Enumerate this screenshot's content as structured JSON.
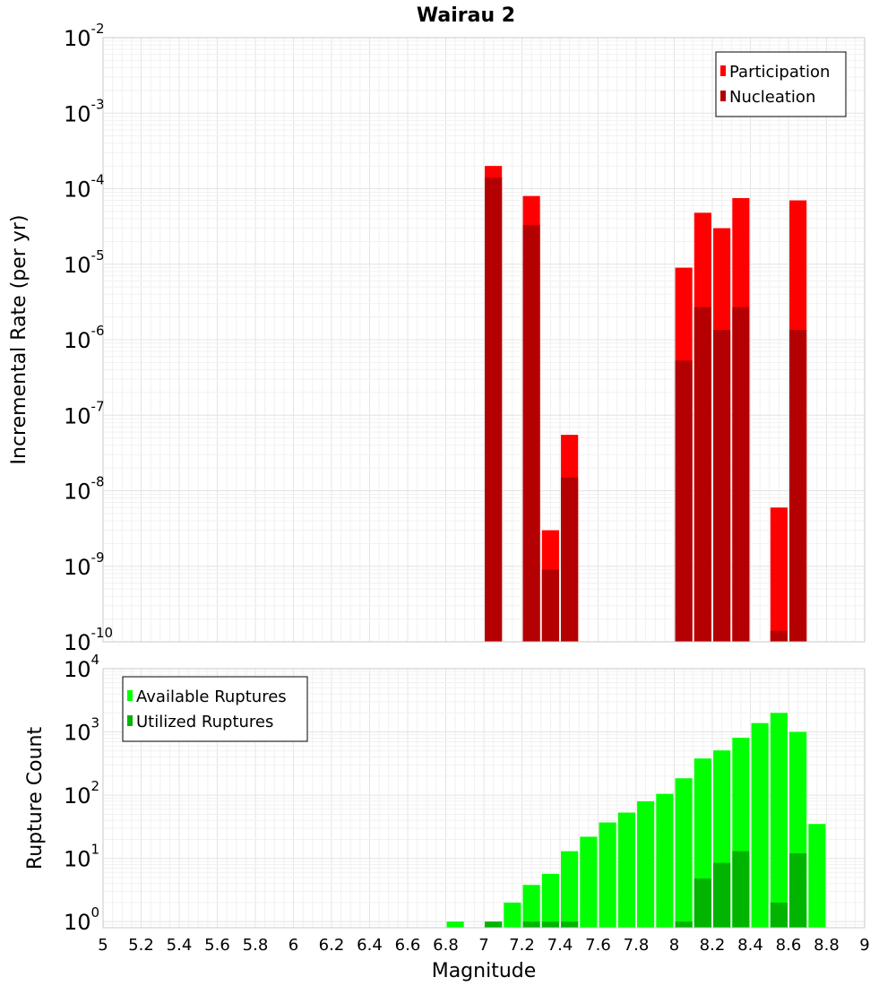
{
  "chart_data": [
    {
      "type": "bar",
      "title": "Wairau 2",
      "ylabel": "Incremental Rate (per yr)",
      "yscale": "log",
      "ylim": [
        1e-10,
        0.01
      ],
      "xlim": [
        5,
        9
      ],
      "y_tick_exponents": [
        "-10",
        "-9",
        "-8",
        "-7",
        "-6",
        "-5",
        "-4",
        "-3",
        "-2"
      ],
      "y_tick_base": "10",
      "legend_position": "top-right",
      "series": [
        {
          "name": "Participation",
          "color": "#ff0000",
          "points": [
            {
              "x": 7.05,
              "y": 0.0002
            },
            {
              "x": 7.25,
              "y": 8e-05
            },
            {
              "x": 7.35,
              "y": 3e-09
            },
            {
              "x": 7.45,
              "y": 5.5e-08
            },
            {
              "x": 8.05,
              "y": 9e-06
            },
            {
              "x": 8.15,
              "y": 4.8e-05
            },
            {
              "x": 8.25,
              "y": 3e-05
            },
            {
              "x": 8.35,
              "y": 7.5e-05
            },
            {
              "x": 8.55,
              "y": 6e-09
            },
            {
              "x": 8.65,
              "y": 7e-05
            }
          ]
        },
        {
          "name": "Nucleation",
          "color": "#b40000",
          "points": [
            {
              "x": 7.05,
              "y": 0.00014
            },
            {
              "x": 7.25,
              "y": 3.3e-05
            },
            {
              "x": 7.35,
              "y": 9e-10
            },
            {
              "x": 7.45,
              "y": 1.5e-08
            },
            {
              "x": 8.05,
              "y": 5.3e-07
            },
            {
              "x": 8.15,
              "y": 2.7e-06
            },
            {
              "x": 8.25,
              "y": 1.35e-06
            },
            {
              "x": 8.35,
              "y": 2.7e-06
            },
            {
              "x": 8.55,
              "y": 1.4e-10
            },
            {
              "x": 8.65,
              "y": 1.35e-06
            }
          ]
        }
      ]
    },
    {
      "type": "bar",
      "xlabel": "Magnitude",
      "ylabel": "Rupture Count",
      "yscale": "log",
      "ylim": [
        0.8,
        10000
      ],
      "xlim": [
        5,
        9
      ],
      "y_tick_exponents": [
        "0",
        "1",
        "2",
        "3",
        "4"
      ],
      "y_tick_base": "10",
      "x_ticks": [
        "5",
        "5.2",
        "5.4",
        "5.6",
        "5.8",
        "6",
        "6.2",
        "6.4",
        "6.6",
        "6.8",
        "7",
        "7.2",
        "7.4",
        "7.6",
        "7.8",
        "8",
        "8.2",
        "8.4",
        "8.6",
        "8.8",
        "9"
      ],
      "legend_position": "top-left",
      "series": [
        {
          "name": "Available Ruptures",
          "color": "#00ff00",
          "points": [
            {
              "x": 6.85,
              "y": 1
            },
            {
              "x": 7.05,
              "y": 1
            },
            {
              "x": 7.15,
              "y": 2
            },
            {
              "x": 7.25,
              "y": 3.8
            },
            {
              "x": 7.35,
              "y": 5.7
            },
            {
              "x": 7.45,
              "y": 13
            },
            {
              "x": 7.55,
              "y": 22
            },
            {
              "x": 7.65,
              "y": 37
            },
            {
              "x": 7.75,
              "y": 53
            },
            {
              "x": 7.85,
              "y": 80
            },
            {
              "x": 7.95,
              "y": 105
            },
            {
              "x": 8.05,
              "y": 185
            },
            {
              "x": 8.15,
              "y": 380
            },
            {
              "x": 8.25,
              "y": 510
            },
            {
              "x": 8.35,
              "y": 810
            },
            {
              "x": 8.45,
              "y": 1380
            },
            {
              "x": 8.55,
              "y": 2000
            },
            {
              "x": 8.65,
              "y": 1000
            },
            {
              "x": 8.75,
              "y": 35
            }
          ]
        },
        {
          "name": "Utilized Ruptures",
          "color": "#00b400",
          "points": [
            {
              "x": 7.05,
              "y": 1
            },
            {
              "x": 7.25,
              "y": 1
            },
            {
              "x": 7.35,
              "y": 1
            },
            {
              "x": 7.45,
              "y": 1
            },
            {
              "x": 8.05,
              "y": 1
            },
            {
              "x": 8.15,
              "y": 4.8
            },
            {
              "x": 8.25,
              "y": 8.5
            },
            {
              "x": 8.35,
              "y": 13
            },
            {
              "x": 8.55,
              "y": 2
            },
            {
              "x": 8.65,
              "y": 12
            }
          ]
        }
      ]
    }
  ]
}
